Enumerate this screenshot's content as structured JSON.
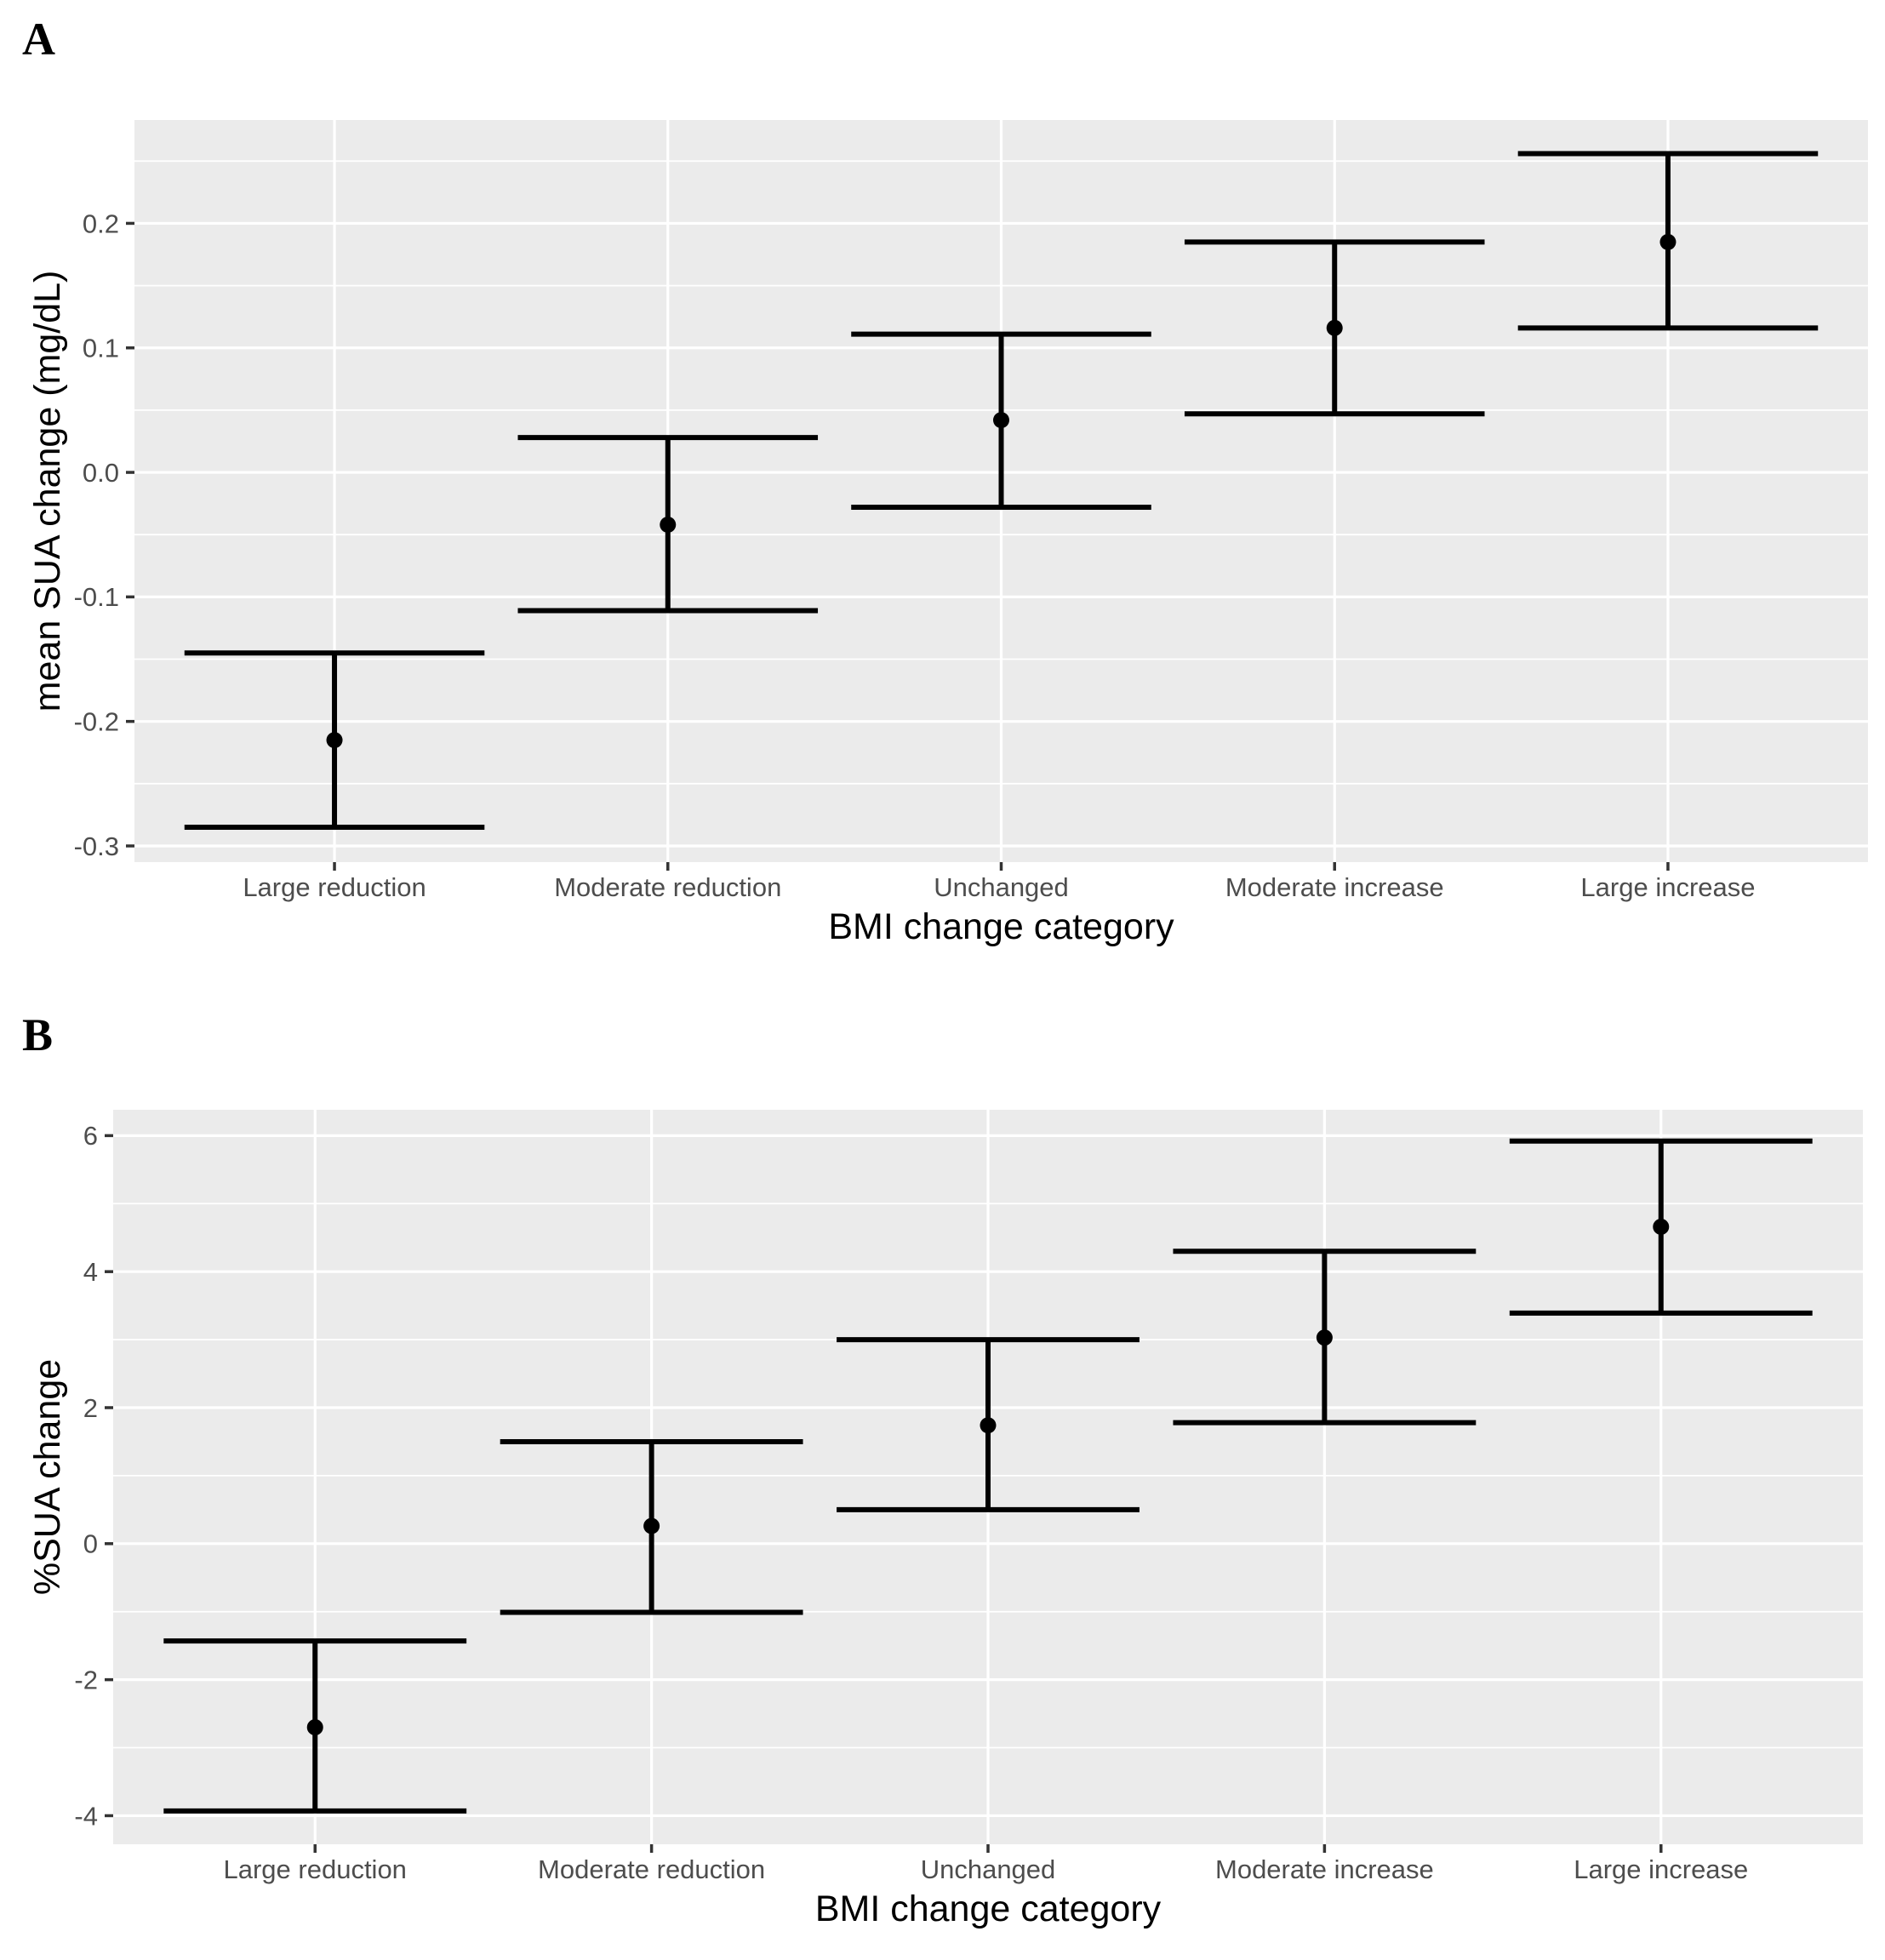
{
  "colors": {
    "page_background": "#FFFFFF",
    "panel_background": "#EBEBEB",
    "gridline": "#FFFFFF",
    "axis_tick": "#333333",
    "axis_text": "#4D4D4D",
    "axis_title": "#000000",
    "data": "#000000"
  },
  "chart_data": [
    {
      "panel_label": "A",
      "type": "errorbar",
      "title": "",
      "xlabel": "BMI change category",
      "ylabel": "mean SUA change (mg/dL)",
      "categories": [
        "Large reduction",
        "Moderate reduction",
        "Unchanged",
        "Moderate increase",
        "Large increase"
      ],
      "series": [
        {
          "name": "mean SUA change (mg/dL)",
          "means": [
            -0.215,
            -0.042,
            0.042,
            0.116,
            0.185
          ],
          "lower": [
            -0.285,
            -0.111,
            -0.028,
            0.047,
            0.116
          ],
          "upper": [
            -0.145,
            0.028,
            0.111,
            0.185,
            0.256
          ]
        }
      ],
      "yticks": [
        0.2,
        0.1,
        0.0,
        -0.1,
        -0.2,
        -0.3
      ],
      "ytick_labels": [
        "0.2",
        "0.1",
        "0.0",
        "-0.1",
        "-0.2",
        "-0.3"
      ],
      "ylim": [
        -0.313,
        0.283
      ],
      "grid": "major+minor",
      "legend": "none"
    },
    {
      "panel_label": "B",
      "type": "errorbar",
      "title": "",
      "xlabel": "BMI change category",
      "ylabel": "%SUA change",
      "categories": [
        "Large reduction",
        "Moderate reduction",
        "Unchanged",
        "Moderate increase",
        "Large increase"
      ],
      "series": [
        {
          "name": "%SUA change",
          "means": [
            -2.7,
            0.26,
            1.74,
            3.03,
            4.66
          ],
          "lower": [
            -3.93,
            -1.01,
            0.5,
            1.78,
            3.39
          ],
          "upper": [
            -1.43,
            1.5,
            3.0,
            4.3,
            5.92
          ]
        }
      ],
      "yticks": [
        6,
        4,
        2,
        0,
        -2,
        -4
      ],
      "ytick_labels": [
        "6",
        "4",
        "2",
        "0",
        "-2",
        "-4"
      ],
      "ylim": [
        -4.42,
        6.38
      ],
      "grid": "major+minor",
      "legend": "none"
    }
  ]
}
